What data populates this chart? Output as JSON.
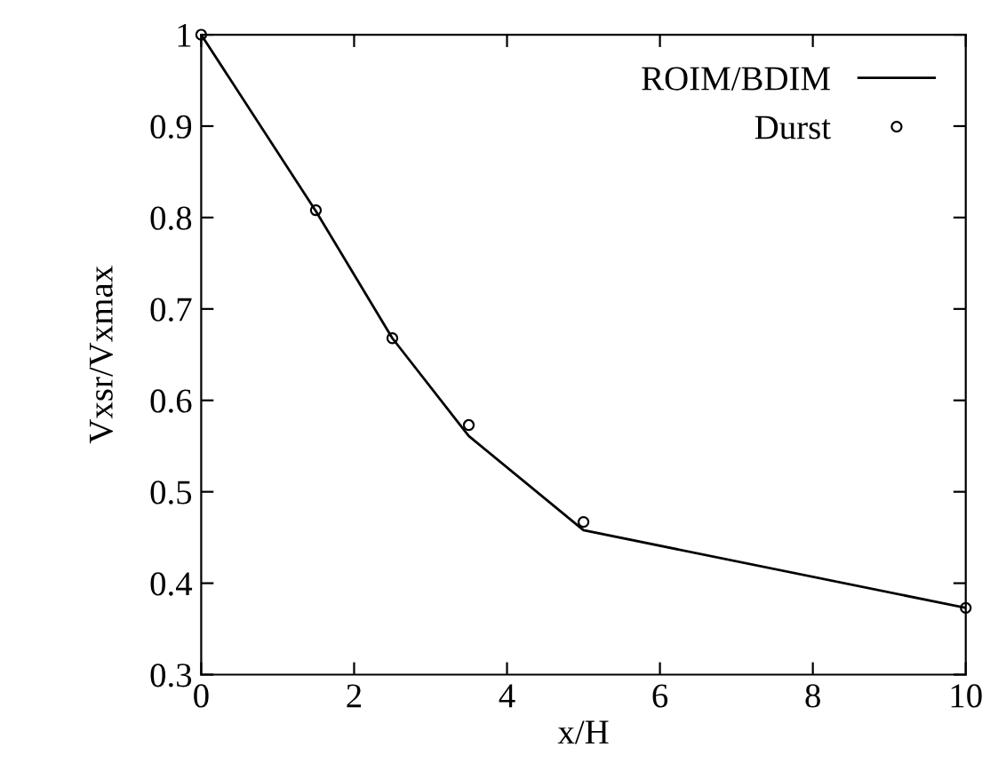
{
  "chart_data": {
    "type": "line",
    "xlabel": "x/H",
    "ylabel": "Vxsr/Vxmax",
    "x": [
      0,
      1.5,
      2.5,
      3.5,
      5,
      10
    ],
    "series": [
      {
        "name": "ROIM/BDIM",
        "color": "#000000",
        "marker": "none",
        "line_style": "solid",
        "values": [
          1,
          0.807,
          0.668,
          0.561,
          0.458,
          0.373
        ]
      },
      {
        "name": "Durst",
        "type": "scatter",
        "color": "#000000",
        "marker": "circle",
        "values": [
          1,
          0.808,
          0.668,
          0.573,
          0.467,
          0.373
        ]
      }
    ],
    "xlim": [
      0,
      10
    ],
    "xticks": [
      0,
      2,
      4,
      6,
      8,
      10
    ],
    "ylim": [
      0.3,
      1
    ],
    "yticks": [
      0.3,
      0.4,
      0.5,
      0.6,
      0.7,
      0.8,
      0.9,
      1
    ],
    "grid": false,
    "legend": "top right"
  }
}
